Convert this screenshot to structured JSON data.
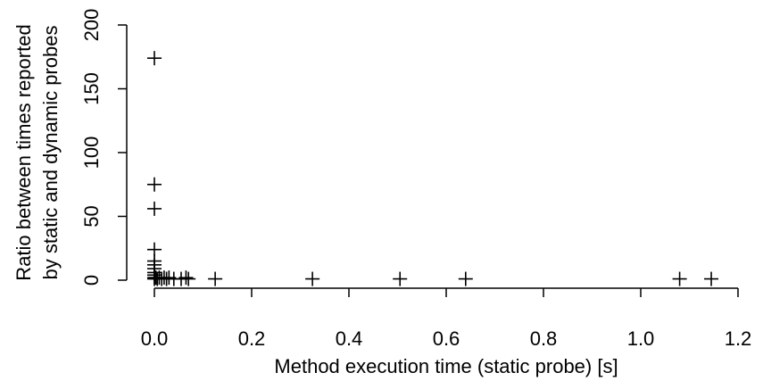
{
  "chart_data": {
    "type": "scatter",
    "title": "",
    "xlabel": "Method execution time (static probe) [s]",
    "ylabel_lines": [
      "Ratio between times reported",
      "by static and dynamic probes"
    ],
    "xlim": [
      -0.02,
      1.2
    ],
    "ylim": [
      0,
      200
    ],
    "x_ticks": [
      0.0,
      0.2,
      0.4,
      0.6,
      0.8,
      1.0,
      1.2
    ],
    "x_tick_labels": [
      "0.0",
      "0.2",
      "0.4",
      "0.6",
      "0.8",
      "1.0",
      "1.2"
    ],
    "y_ticks": [
      0,
      50,
      100,
      150,
      200
    ],
    "y_tick_labels": [
      "0",
      "50",
      "100",
      "150",
      "200"
    ],
    "marker": "+",
    "grid": false,
    "legend": "none",
    "points": [
      {
        "x": 0.0,
        "y": 174
      },
      {
        "x": 0.0,
        "y": 75
      },
      {
        "x": 0.0,
        "y": 56
      },
      {
        "x": 0.0,
        "y": 24
      },
      {
        "x": 0.0,
        "y": 15
      },
      {
        "x": 0.0,
        "y": 12
      },
      {
        "x": 0.0,
        "y": 9
      },
      {
        "x": 0.0,
        "y": 6
      },
      {
        "x": 0.0,
        "y": 4
      },
      {
        "x": 0.0,
        "y": 2
      },
      {
        "x": 0.0,
        "y": 1
      },
      {
        "x": 0.003,
        "y": 2
      },
      {
        "x": 0.006,
        "y": 1
      },
      {
        "x": 0.01,
        "y": 2
      },
      {
        "x": 0.015,
        "y": 1
      },
      {
        "x": 0.02,
        "y": 2
      },
      {
        "x": 0.025,
        "y": 1
      },
      {
        "x": 0.03,
        "y": 2
      },
      {
        "x": 0.04,
        "y": 1
      },
      {
        "x": 0.055,
        "y": 1
      },
      {
        "x": 0.065,
        "y": 2
      },
      {
        "x": 0.07,
        "y": 1
      },
      {
        "x": 0.125,
        "y": 1
      },
      {
        "x": 0.325,
        "y": 1
      },
      {
        "x": 0.505,
        "y": 1
      },
      {
        "x": 0.64,
        "y": 1
      },
      {
        "x": 1.08,
        "y": 1
      },
      {
        "x": 1.145,
        "y": 1
      }
    ]
  }
}
